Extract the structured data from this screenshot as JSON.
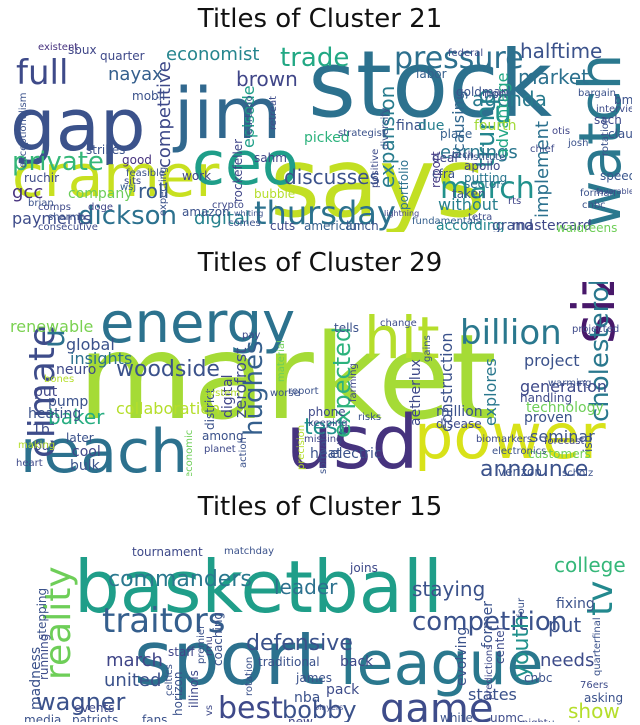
{
  "clouds": [
    {
      "title": "Titles of Cluster 21",
      "words": [
        {
          "text": "says",
          "color": "#c2df23"
        },
        {
          "text": "stock",
          "color": "#2c718e"
        },
        {
          "text": "gap",
          "color": "#3b528b"
        },
        {
          "text": "jim",
          "color": "#31688e"
        },
        {
          "text": "cramer",
          "color": "#c8e020"
        },
        {
          "text": "ceo",
          "color": "#1f9e89"
        },
        {
          "text": "watch",
          "color": "#2a788e"
        },
        {
          "text": "thursday",
          "color": "#2c728e"
        },
        {
          "text": "full",
          "color": "#3e4a89"
        },
        {
          "text": "pressure",
          "color": "#2d708e"
        },
        {
          "text": "march",
          "color": "#21918c"
        },
        {
          "text": "dickson",
          "color": "#2c718e"
        },
        {
          "text": "private",
          "color": "#35b779"
        },
        {
          "text": "trump",
          "color": "#24868e"
        },
        {
          "text": "trade",
          "color": "#22a884"
        },
        {
          "text": "economist",
          "color": "#25858e"
        },
        {
          "text": "brown",
          "color": "#404688"
        },
        {
          "text": "halftime",
          "color": "#3b528b"
        },
        {
          "text": "market",
          "color": "#2c718e"
        },
        {
          "text": "agenda",
          "color": "#297b8e"
        },
        {
          "text": "competitive",
          "color": "#3e4989"
        },
        {
          "text": "episode",
          "color": "#1fa088"
        },
        {
          "text": "digital",
          "color": "#26828e"
        },
        {
          "text": "payments",
          "color": "#3e4c8a"
        },
        {
          "text": "gcc",
          "color": "#46327e"
        },
        {
          "text": "roll",
          "color": "#375a8c"
        },
        {
          "text": "company",
          "color": "#6ccd5a"
        },
        {
          "text": "discusses",
          "color": "#3b528b"
        },
        {
          "text": "earnings",
          "color": "#2a768e"
        },
        {
          "text": "without",
          "color": "#277f8e"
        },
        {
          "text": "causing",
          "color": "#31678e"
        },
        {
          "text": "advantage",
          "color": "#22a785"
        },
        {
          "text": "implement",
          "color": "#2c718e"
        },
        {
          "text": "expansion",
          "color": "#287c8e"
        },
        {
          "text": "according",
          "color": "#23898e"
        },
        {
          "text": "grand",
          "color": "#3b528b"
        },
        {
          "text": "u",
          "color": "#1f968b"
        },
        {
          "text": "nayax",
          "color": "#355f8d"
        },
        {
          "text": "fourth",
          "color": "#a2da37"
        },
        {
          "text": "mastercard",
          "color": "#3f4788"
        },
        {
          "text": "walgreens",
          "color": "#6ece58"
        },
        {
          "text": "sector",
          "color": "#2d708e"
        },
        {
          "text": "apollo",
          "color": "#404688"
        },
        {
          "text": "report",
          "color": "#443a83"
        },
        {
          "text": "taken",
          "color": "#3a548c"
        },
        {
          "text": "putting",
          "color": "#2a768e"
        },
        {
          "text": "final",
          "color": "#3b528b"
        },
        {
          "text": "picked",
          "color": "#2db27d"
        },
        {
          "text": "due",
          "color": "#277f8e"
        },
        {
          "text": "place",
          "color": "#355f8d"
        },
        {
          "text": "portfolio",
          "color": "#2c718e"
        },
        {
          "text": "cfra",
          "color": "#3b528b"
        },
        {
          "text": "speed",
          "color": "#39568c"
        },
        {
          "text": "strikes",
          "color": "#3b528b"
        },
        {
          "text": "good",
          "color": "#46327e"
        },
        {
          "text": "work",
          "color": "#404688"
        },
        {
          "text": "amazon",
          "color": "#3b528b"
        },
        {
          "text": "lunch",
          "color": "#3b528b"
        },
        {
          "text": "cuts",
          "color": "#3e4989"
        },
        {
          "text": "american",
          "color": "#355f8d"
        },
        {
          "text": "ruchir",
          "color": "#3e4c8a"
        },
        {
          "text": "mobil",
          "color": "#3b528b"
        },
        {
          "text": "quarter",
          "color": "#3e4989"
        },
        {
          "text": "sbux",
          "color": "#404688"
        },
        {
          "text": "existent",
          "color": "#46327e"
        },
        {
          "text": "exceptionalism",
          "color": "#3b528b"
        },
        {
          "text": "comps",
          "color": "#3e4989"
        },
        {
          "text": "sharma",
          "color": "#3b528b"
        },
        {
          "text": "brian",
          "color": "#3b528b"
        },
        {
          "text": "doge",
          "color": "#404688"
        },
        {
          "text": "consecutive",
          "color": "#3e4c8a"
        },
        {
          "text": "claudia",
          "color": "#3b528b"
        },
        {
          "text": "bmy",
          "color": "#3b528b"
        },
        {
          "text": "sach",
          "color": "#3e4989"
        },
        {
          "text": "goldman",
          "color": "#3b528b"
        },
        {
          "text": "labor",
          "color": "#355f8d"
        },
        {
          "text": "federal",
          "color": "#3e4989"
        },
        {
          "text": "non",
          "color": "#3b528b"
        },
        {
          "text": "diversify",
          "color": "#3b528b"
        },
        {
          "text": "sahm",
          "color": "#404688"
        },
        {
          "text": "retreat",
          "color": "#3e4c8a"
        },
        {
          "text": "feurtado",
          "color": "#3b528b"
        },
        {
          "text": "rockefeller",
          "color": "#404688"
        },
        {
          "text": "sits",
          "color": "#3e4989"
        },
        {
          "text": "bubble",
          "color": "#b5de2b"
        },
        {
          "text": "strategist",
          "color": "#3b528b"
        },
        {
          "text": "positive",
          "color": "#3e4c8a"
        },
        {
          "text": "feasible",
          "color": "#3b528b"
        },
        {
          "text": "wsj",
          "color": "#355f8d"
        },
        {
          "text": "deal",
          "color": "#404688"
        },
        {
          "text": "tech",
          "color": "#3e4989"
        },
        {
          "text": "institute",
          "color": "#3b528b"
        },
        {
          "text": "rotation",
          "color": "#3b528b"
        },
        {
          "text": "interview",
          "color": "#3e4c8a"
        },
        {
          "text": "bargain",
          "color": "#3b528b"
        },
        {
          "text": "otis",
          "color": "#404688"
        },
        {
          "text": "chief",
          "color": "#3e4989"
        },
        {
          "text": "forman",
          "color": "#3b528b"
        },
        {
          "text": "cnbc",
          "color": "#3b528b"
        },
        {
          "text": "favorable",
          "color": "#3e4c8a"
        },
        {
          "text": "josh",
          "color": "#3b528b"
        },
        {
          "text": "lightning",
          "color": "#404688"
        },
        {
          "text": "whiting",
          "color": "#3b528b"
        },
        {
          "text": "crypto",
          "color": "#3e4989"
        },
        {
          "text": "comes",
          "color": "#3b528b"
        },
        {
          "text": "fundamentals",
          "color": "#355f8d"
        },
        {
          "text": "tetra",
          "color": "#3e4c8a"
        },
        {
          "text": "rts",
          "color": "#404688"
        },
        {
          "text": "expecting",
          "color": "#3b528b"
        }
      ]
    },
    {
      "title": "Titles of Cluster 29",
      "words": [
        {
          "text": "market",
          "color": "#a5db36"
        },
        {
          "text": "usd",
          "color": "#46337e"
        },
        {
          "text": "reach",
          "color": "#2c718e"
        },
        {
          "text": "power",
          "color": "#d8e219"
        },
        {
          "text": "energy",
          "color": "#2c728e"
        },
        {
          "text": "hit",
          "color": "#b5de2b"
        },
        {
          "text": "size",
          "color": "#48186a"
        },
        {
          "text": "billion",
          "color": "#2a788e"
        },
        {
          "text": "climate",
          "color": "#3e4c8a"
        },
        {
          "text": "u",
          "color": "#2c718e"
        },
        {
          "text": "cholesterol",
          "color": "#2a788e"
        },
        {
          "text": "woodside",
          "color": "#3b528b"
        },
        {
          "text": "hughes",
          "color": "#355f8d"
        },
        {
          "text": "expected",
          "color": "#2db27d"
        },
        {
          "text": "announce",
          "color": "#3b528b"
        },
        {
          "text": "baker",
          "color": "#27ad81"
        },
        {
          "text": "test",
          "color": "#21918c"
        },
        {
          "text": "collaboration",
          "color": "#b5de2b"
        },
        {
          "text": "renewable",
          "color": "#7ad151"
        },
        {
          "text": "global",
          "color": "#3b528b"
        },
        {
          "text": "insights",
          "color": "#2c718e"
        },
        {
          "text": "neuro",
          "color": "#3e4989"
        },
        {
          "text": "put",
          "color": "#404688"
        },
        {
          "text": "pump",
          "color": "#3b528b"
        },
        {
          "text": "heating",
          "color": "#3b528b"
        },
        {
          "text": "1b",
          "color": "#3e4c8a"
        },
        {
          "text": "construction",
          "color": "#3b528b"
        },
        {
          "text": "explores",
          "color": "#2a788e"
        },
        {
          "text": "generation",
          "color": "#3e4989"
        },
        {
          "text": "project",
          "color": "#3b528b"
        },
        {
          "text": "technology",
          "color": "#6ece58"
        },
        {
          "text": "proven",
          "color": "#3b528b"
        },
        {
          "text": "seminar",
          "color": "#3b528b"
        },
        {
          "text": "zerofrost",
          "color": "#3e4c8a"
        },
        {
          "text": "digital",
          "color": "#404688"
        },
        {
          "text": "district",
          "color": "#3b528b"
        },
        {
          "text": "aetherlux",
          "color": "#3e4989"
        },
        {
          "text": "million",
          "color": "#3b528b"
        },
        {
          "text": "disease",
          "color": "#3e4c8a"
        },
        {
          "text": "electric",
          "color": "#3b528b"
        },
        {
          "text": "heat",
          "color": "#3b528b"
        },
        {
          "text": "phone",
          "color": "#3e4989"
        },
        {
          "text": "iso",
          "color": "#3b528b"
        },
        {
          "text": "verizon",
          "color": "#3b528b"
        },
        {
          "text": "handling",
          "color": "#3e4989"
        },
        {
          "text": "customers",
          "color": "#6ece58"
        },
        {
          "text": "electronics",
          "color": "#3b528b"
        },
        {
          "text": "biomarkers",
          "color": "#3e4c8a"
        },
        {
          "text": "forecast",
          "color": "#404688"
        },
        {
          "text": "warming",
          "color": "#3b528b"
        },
        {
          "text": "projected",
          "color": "#3e4989"
        },
        {
          "text": "tells",
          "color": "#3b528b"
        },
        {
          "text": "change",
          "color": "#3e4c8a"
        },
        {
          "text": "gains",
          "color": "#3b528b"
        },
        {
          "text": "farming",
          "color": "#404688"
        },
        {
          "text": "material",
          "color": "#6ece58"
        },
        {
          "text": "worse",
          "color": "#3b528b"
        },
        {
          "text": "pay",
          "color": "#3e4989"
        },
        {
          "text": "system",
          "color": "#b5de2b"
        },
        {
          "text": "report",
          "color": "#3b528b"
        },
        {
          "text": "keeping",
          "color": "#3e4c8a"
        },
        {
          "text": "missing",
          "color": "#404688"
        },
        {
          "text": "risks",
          "color": "#3b528b"
        },
        {
          "text": "among",
          "color": "#3b528b"
        },
        {
          "text": "planet",
          "color": "#3e4989"
        },
        {
          "text": "economic",
          "color": "#6ece58"
        },
        {
          "text": "action",
          "color": "#3b528b"
        },
        {
          "text": "precision",
          "color": "#b5de2b"
        },
        {
          "text": "software",
          "color": "#3b528b"
        },
        {
          "text": "buy",
          "color": "#3e4c8a"
        },
        {
          "text": "later",
          "color": "#3b528b"
        },
        {
          "text": "cool",
          "color": "#404688"
        },
        {
          "text": "bulk",
          "color": "#3b528b"
        },
        {
          "text": "heart",
          "color": "#3e4989"
        },
        {
          "text": "making",
          "color": "#b5de2b"
        },
        {
          "text": "scholz",
          "color": "#3b528b"
        },
        {
          "text": "bones",
          "color": "#b5de2b"
        }
      ]
    },
    {
      "title": "Titles of Cluster 15",
      "words": [
        {
          "text": "basketball",
          "color": "#1f9e89"
        },
        {
          "text": "sport",
          "color": "#2c718e"
        },
        {
          "text": "league",
          "color": "#2a788e"
        },
        {
          "text": "game",
          "color": "#3e4c8a"
        },
        {
          "text": "traitors",
          "color": "#355f8d"
        },
        {
          "text": "competition",
          "color": "#3b528b"
        },
        {
          "text": "reality",
          "color": "#6ece58"
        },
        {
          "text": "tv",
          "color": "#23898e"
        },
        {
          "text": "wagner",
          "color": "#3b528b"
        },
        {
          "text": "best",
          "color": "#3e4989"
        },
        {
          "text": "bobby",
          "color": "#3b528b"
        },
        {
          "text": "commanders",
          "color": "#2a788e"
        },
        {
          "text": "defensive",
          "color": "#3b528b"
        },
        {
          "text": "united",
          "color": "#3b528b"
        },
        {
          "text": "leader",
          "color": "#2c718e"
        },
        {
          "text": "staying",
          "color": "#3b528b"
        },
        {
          "text": "youth",
          "color": "#21918c"
        },
        {
          "text": "show",
          "color": "#b5de2b"
        },
        {
          "text": "college",
          "color": "#35b779"
        },
        {
          "text": "put",
          "color": "#3b528b"
        },
        {
          "text": "needs",
          "color": "#3e4c8a"
        },
        {
          "text": "states",
          "color": "#3b528b"
        },
        {
          "text": "march",
          "color": "#404688"
        },
        {
          "text": "madness",
          "color": "#3b528b"
        },
        {
          "text": "fixing",
          "color": "#3b528b"
        },
        {
          "text": "tournament",
          "color": "#3e4989"
        },
        {
          "text": "matchday",
          "color": "#3b528b"
        },
        {
          "text": "stepping",
          "color": "#3b528b"
        },
        {
          "text": "running",
          "color": "#3e4c8a"
        },
        {
          "text": "rmu",
          "color": "#404688"
        },
        {
          "text": "coaching",
          "color": "#3b528b"
        },
        {
          "text": "joins",
          "color": "#3e4989"
        },
        {
          "text": "former",
          "color": "#3b528b"
        },
        {
          "text": "center",
          "color": "#3e4c8a"
        },
        {
          "text": "four",
          "color": "#3b528b"
        },
        {
          "text": "cnbc",
          "color": "#3b528b"
        },
        {
          "text": "events",
          "color": "#3e4989"
        },
        {
          "text": "patriots",
          "color": "#3b528b"
        },
        {
          "text": "staff",
          "color": "#404688"
        },
        {
          "text": "premier",
          "color": "#3b528b"
        },
        {
          "text": "traditional",
          "color": "#3b528b"
        },
        {
          "text": "back",
          "color": "#3e4989"
        },
        {
          "text": "james",
          "color": "#3b528b"
        },
        {
          "text": "pack",
          "color": "#3e4c8a"
        },
        {
          "text": "nba",
          "color": "#3b528b"
        },
        {
          "text": "evolving",
          "color": "#3b528b"
        },
        {
          "text": "illinois",
          "color": "#3e4989"
        },
        {
          "text": "horizon",
          "color": "#3b528b"
        },
        {
          "text": "upmc",
          "color": "#3e4c8a"
        },
        {
          "text": "media",
          "color": "#3b528b"
        },
        {
          "text": "fans",
          "color": "#3b528b"
        },
        {
          "text": "new",
          "color": "#404688"
        },
        {
          "text": "white",
          "color": "#3b528b"
        },
        {
          "text": "night",
          "color": "#3e4989"
        },
        {
          "text": "asking",
          "color": "#3b528b"
        },
        {
          "text": "76ers",
          "color": "#3e4c8a"
        },
        {
          "text": "thursday",
          "color": "#3b528b"
        },
        {
          "text": "quarterfinal",
          "color": "#3b528b"
        },
        {
          "text": "predictions",
          "color": "#3e4989"
        },
        {
          "text": "players",
          "color": "#3e4c8a"
        },
        {
          "text": "rotation",
          "color": "#3b528b"
        },
        {
          "text": "celtics",
          "color": "#3b528b"
        },
        {
          "text": "vs",
          "color": "#3e4989"
        }
      ]
    }
  ]
}
